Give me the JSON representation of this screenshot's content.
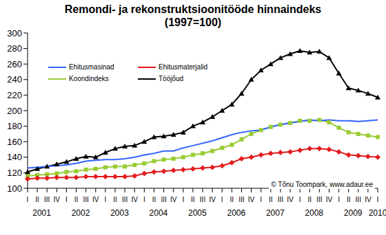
{
  "chart_data": {
    "type": "line",
    "title": "Remondi- ja rekonstruktsioonitööde hinnaindeks",
    "subtitle": "(1997=100)",
    "annotation": "© Tõnu Toompark, www.adaur.ee",
    "categories": [
      "I",
      "II",
      "III",
      "IV",
      "I",
      "II",
      "III",
      "IV",
      "I",
      "II",
      "III",
      "IV",
      "I",
      "II",
      "III",
      "IV",
      "I",
      "II",
      "III",
      "IV",
      "I",
      "II",
      "III",
      "IV",
      "I",
      "II",
      "III",
      "IV",
      "I",
      "II",
      "III",
      "IV",
      "I",
      "II",
      "III",
      "IV",
      "I"
    ],
    "year_labels": [
      "2001",
      "2002",
      "2003",
      "2004",
      "2005",
      "2006",
      "2007",
      "2008",
      "2009",
      "2010"
    ],
    "series": [
      {
        "name": "Koondindeks",
        "color": "#99cc33",
        "marker": "square",
        "values": [
          116,
          117,
          118,
          119,
          121,
          122,
          124,
          125,
          127,
          128,
          128,
          130,
          132,
          135,
          137,
          138,
          140,
          143,
          145,
          148,
          152,
          156,
          163,
          170,
          175,
          179,
          182,
          184,
          187,
          187,
          188,
          185,
          178,
          172,
          170,
          168,
          166
        ]
      },
      {
        "name": "Tööjõud",
        "color": "#000000",
        "marker": "triangle",
        "values": [
          121,
          125,
          128,
          131,
          134,
          138,
          141,
          140,
          146,
          151,
          154,
          155,
          160,
          166,
          167,
          169,
          172,
          180,
          185,
          192,
          200,
          208,
          222,
          240,
          252,
          260,
          268,
          273,
          277,
          275,
          276,
          268,
          248,
          229,
          226,
          222,
          217
        ]
      },
      {
        "name": "Ehitusmasinad",
        "color": "#3366ff",
        "marker": "none",
        "values": [
          126,
          127,
          128,
          129,
          130,
          132,
          135,
          136,
          137,
          137,
          138,
          140,
          143,
          145,
          148,
          148,
          152,
          155,
          158,
          161,
          165,
          169,
          172,
          174,
          175,
          179,
          182,
          184,
          186,
          188,
          187,
          188,
          187,
          187,
          186,
          187,
          188
        ]
      },
      {
        "name": "Ehitusmaterjalid",
        "color": "#e31a1c",
        "marker": "diamond",
        "values": [
          112,
          113,
          113,
          114,
          114,
          114,
          115,
          115,
          115,
          115,
          115,
          116,
          119,
          121,
          122,
          123,
          124,
          125,
          126,
          127,
          129,
          133,
          138,
          140,
          143,
          145,
          146,
          147,
          149,
          151,
          151,
          150,
          147,
          143,
          142,
          141,
          140
        ]
      }
    ],
    "ylim": [
      100,
      300
    ],
    "yticks": [
      100,
      120,
      140,
      160,
      180,
      200,
      220,
      240,
      260,
      280,
      300
    ],
    "grid": false,
    "legend": "upper left"
  }
}
